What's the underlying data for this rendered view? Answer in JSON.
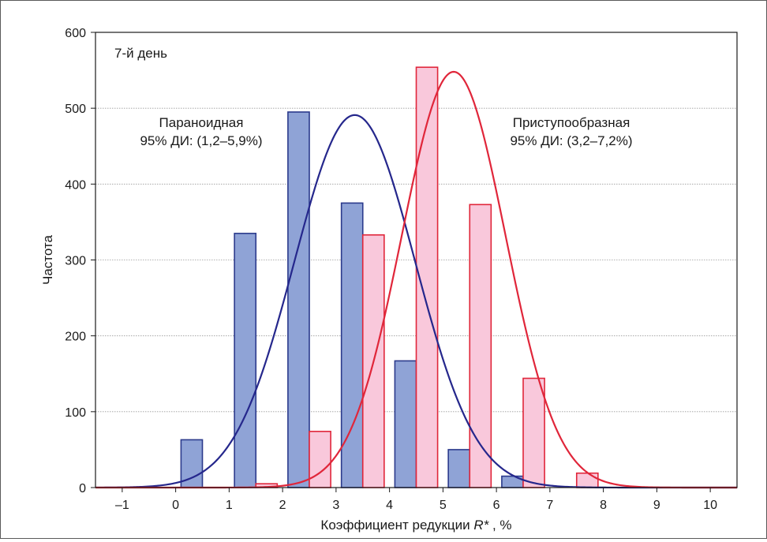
{
  "chart_data": {
    "type": "bar",
    "annotation_day": "7-й день",
    "xlabel_main": "Коэффициент редукции ",
    "xlabel_italic": "R*",
    "xlabel_suffix": " , %",
    "ylabel": "Частота",
    "xlim": [
      -1.5,
      10.5
    ],
    "ylim": [
      0,
      600
    ],
    "xticks": [
      -1,
      0,
      1,
      2,
      3,
      4,
      5,
      6,
      7,
      8,
      9,
      10
    ],
    "xtick_labels": [
      "–1",
      "0",
      "1",
      "2",
      "3",
      "4",
      "5",
      "6",
      "7",
      "8",
      "9",
      "10"
    ],
    "yticks": [
      0,
      100,
      200,
      300,
      400,
      500,
      600
    ],
    "grid": true,
    "series": [
      {
        "label_line1": "Параноидная",
        "label_line2": "95% ДИ: (1,2–5,9%)",
        "bar_fill": "#8fa3d6",
        "bar_stroke": "#2b3a8c",
        "curve_color": "#25278c",
        "bars": [
          {
            "x": 0.3,
            "value": 63
          },
          {
            "x": 1.3,
            "value": 335
          },
          {
            "x": 2.3,
            "value": 495
          },
          {
            "x": 3.3,
            "value": 375
          },
          {
            "x": 4.3,
            "value": 167
          },
          {
            "x": 5.3,
            "value": 50
          },
          {
            "x": 6.3,
            "value": 15
          }
        ],
        "curve": {
          "mean": 3.35,
          "sd": 1.13,
          "peak": 491
        }
      },
      {
        "label_line1": "Приступообразная",
        "label_line2": "95% ДИ: (3,2–7,2%)",
        "bar_fill": "#f9c8db",
        "bar_stroke": "#e0263a",
        "curve_color": "#e0263a",
        "bars": [
          {
            "x": 1.7,
            "value": 5
          },
          {
            "x": 2.7,
            "value": 74
          },
          {
            "x": 3.7,
            "value": 333
          },
          {
            "x": 4.7,
            "value": 554
          },
          {
            "x": 5.7,
            "value": 373
          },
          {
            "x": 6.7,
            "value": 144
          },
          {
            "x": 7.7,
            "value": 19
          }
        ],
        "curve": {
          "mean": 5.2,
          "sd": 0.97,
          "peak": 548
        }
      }
    ]
  }
}
